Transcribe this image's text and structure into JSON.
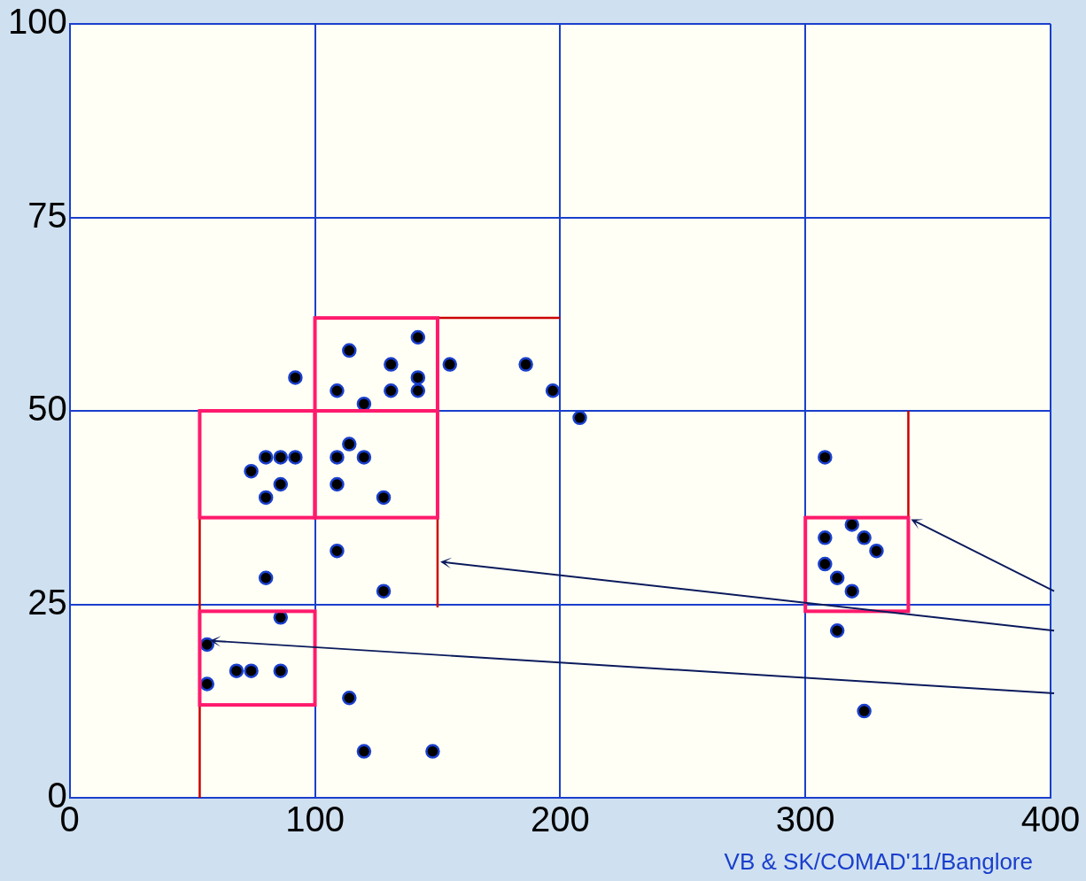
{
  "chart_data": {
    "type": "scatter",
    "xlim": [
      0,
      400
    ],
    "ylim": [
      0,
      100
    ],
    "xticks": [
      0,
      100,
      200,
      300,
      400
    ],
    "yticks": [
      0,
      25,
      50,
      75,
      100
    ],
    "grid": true,
    "legend": false,
    "marker": "circle",
    "series": [
      {
        "color": "#000000",
        "x": [
          92,
          114,
          131,
          142,
          142,
          142,
          131,
          109,
          120,
          155,
          186,
          197,
          208,
          80,
          86,
          92,
          74,
          86,
          80,
          114,
          109,
          120,
          109,
          128,
          109,
          80,
          128,
          86,
          56,
          68,
          74,
          86,
          56,
          114,
          120,
          148,
          308,
          319,
          308,
          324,
          329,
          308,
          313,
          319,
          313,
          324
        ],
        "values": [
          54.3,
          57.8,
          56,
          59.5,
          54.3,
          52.6,
          52.6,
          52.6,
          50.9,
          56,
          56,
          52.6,
          49.1,
          44,
          44,
          44,
          42.2,
          40.5,
          38.8,
          45.7,
          44,
          44,
          40.5,
          38.8,
          31.9,
          28.4,
          26.7,
          23.3,
          19.8,
          16.4,
          16.4,
          16.4,
          14.7,
          12.9,
          6,
          6,
          44,
          35.3,
          33.6,
          33.6,
          31.9,
          30.2,
          28.4,
          26.7,
          21.6,
          11.2
        ]
      },
      {
        "type": "line",
        "marker": "none",
        "color": "#cc0000",
        "x": [
          53,
          53
        ],
        "values": [
          0,
          36.2
        ]
      },
      {
        "type": "line",
        "marker": "none",
        "color": "#cc0000",
        "x": [
          150,
          200
        ],
        "values": [
          62,
          62
        ]
      },
      {
        "type": "line",
        "marker": "none",
        "color": "#cc0000",
        "x": [
          150,
          150
        ],
        "values": [
          24.6,
          36.2
        ]
      },
      {
        "type": "line",
        "marker": "none",
        "color": "#cc0000",
        "x": [
          342,
          342
        ],
        "values": [
          36.2,
          50
        ]
      }
    ],
    "annotations": [
      "VB & SK/COMAD'11/Banglore"
    ]
  }
}
